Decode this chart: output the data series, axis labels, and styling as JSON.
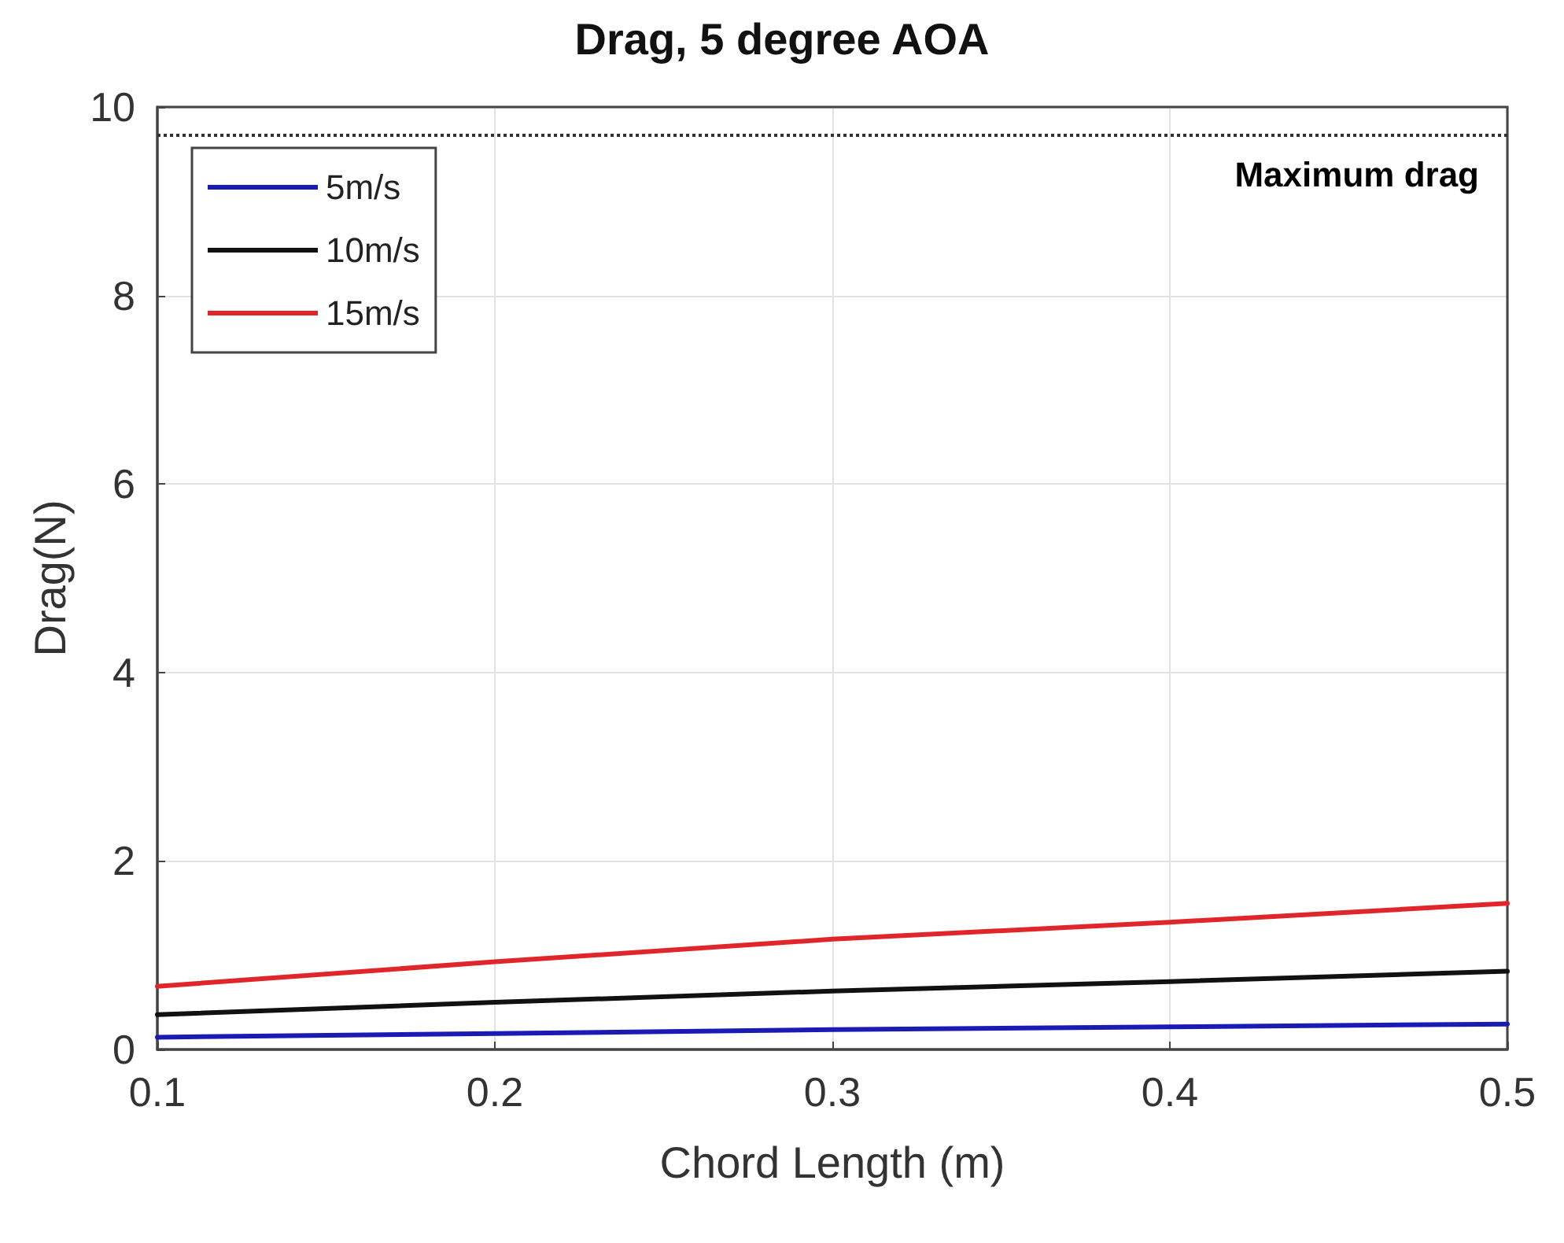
{
  "chart_data": {
    "type": "line",
    "title": "Drag, 5 degree AOA",
    "xlabel": "Chord Length (m)",
    "ylabel": "Drag(N)",
    "x": [
      0.1,
      0.2,
      0.3,
      0.4,
      0.5
    ],
    "series": [
      {
        "name": "5m/s",
        "color": "#1a1ab4",
        "values": [
          0.13,
          0.17,
          0.21,
          0.24,
          0.27
        ]
      },
      {
        "name": "10m/s",
        "color": "#111111",
        "values": [
          0.37,
          0.5,
          0.62,
          0.72,
          0.83
        ]
      },
      {
        "name": "15m/s",
        "color": "#e0262a",
        "values": [
          0.67,
          0.93,
          1.17,
          1.35,
          1.55
        ]
      }
    ],
    "xlim": [
      0.1,
      0.5
    ],
    "xticks": [
      0.1,
      0.2,
      0.3,
      0.4,
      0.5
    ],
    "ylim": [
      0,
      10
    ],
    "yticks": [
      0,
      2,
      4,
      6,
      8,
      10
    ],
    "ref_lines": [
      {
        "axis": "y",
        "value": 9.7,
        "label": "Maximum drag",
        "color": "#333333",
        "line_style": "dotted"
      }
    ],
    "grid": true,
    "legend": "top left",
    "marker": "none",
    "line_style": "solid"
  }
}
